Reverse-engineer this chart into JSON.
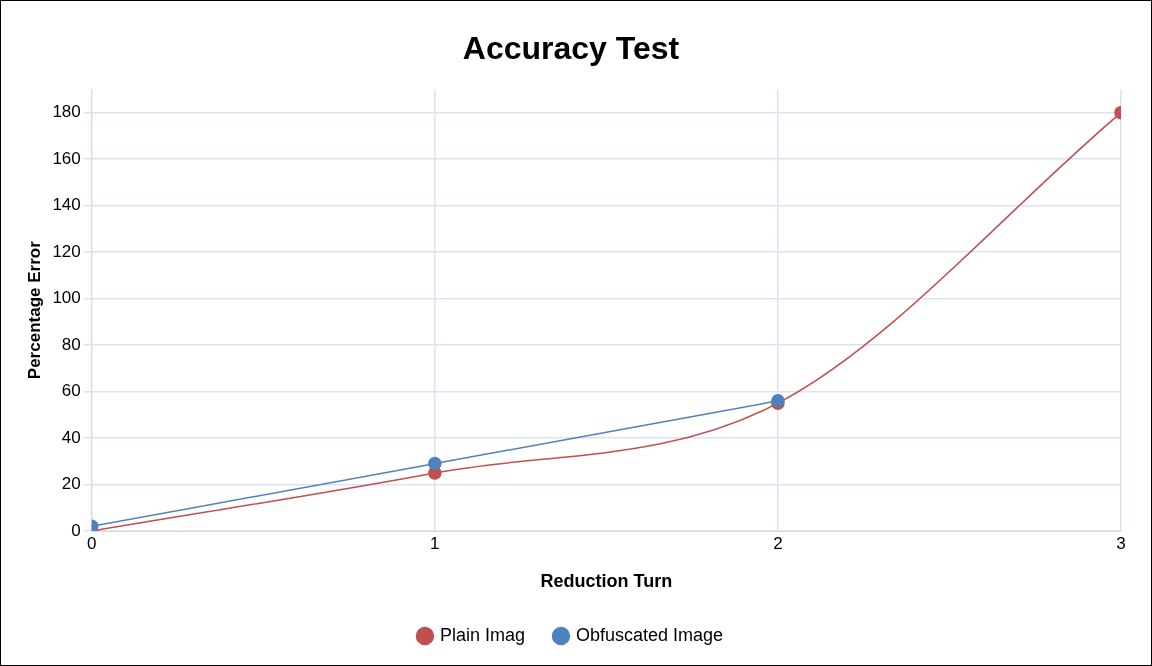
{
  "chart_data": {
    "type": "line",
    "title": "Accuracy Test",
    "xlabel": "Reduction Turn",
    "ylabel": "Percentage Error",
    "x": [
      0,
      1,
      2,
      3
    ],
    "series": [
      {
        "name": "Plain Imag",
        "color": "#c0504d",
        "values": [
          0,
          25,
          55,
          180
        ]
      },
      {
        "name": "Obfuscated Image",
        "color": "#4f81bd",
        "values": [
          2,
          29,
          56,
          null
        ]
      }
    ],
    "xlim": [
      0,
      3
    ],
    "xticks": [
      0,
      1,
      2,
      3
    ],
    "ylim": [
      0,
      190
    ],
    "yticks": [
      0,
      20,
      40,
      60,
      80,
      100,
      120,
      140,
      160,
      180
    ],
    "grid": true,
    "legend": "bottom",
    "marker": "circle",
    "line_style": "solid"
  }
}
